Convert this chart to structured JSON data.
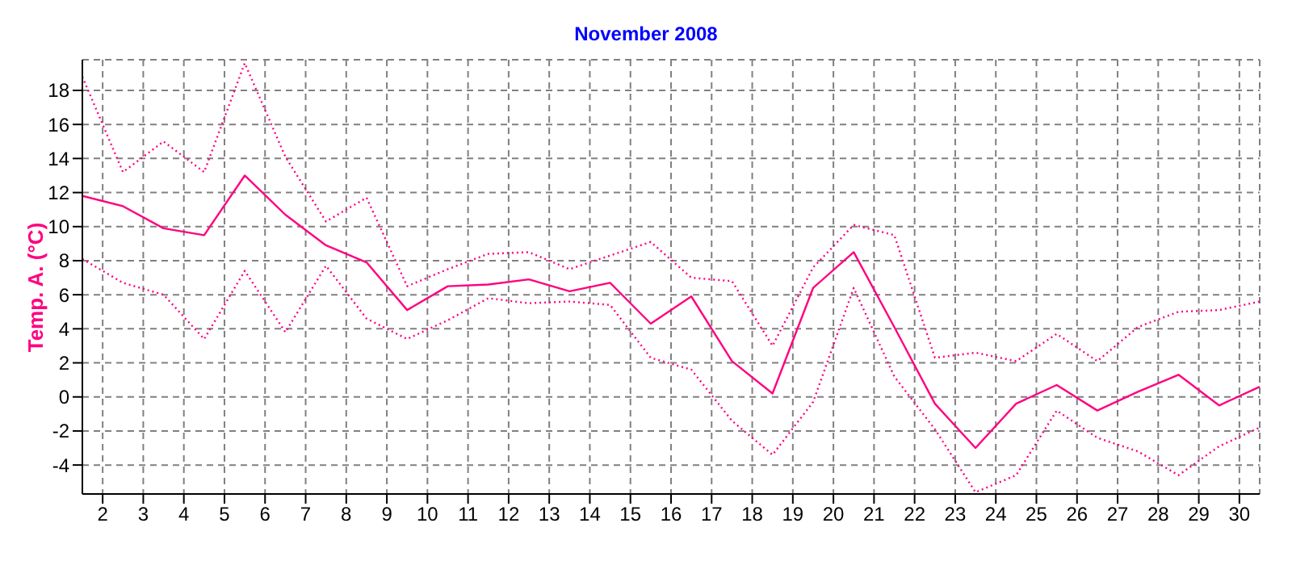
{
  "chart_data": {
    "type": "line",
    "title": "November 2008",
    "ylabel": "Temp. A. (°C)",
    "x": [
      1.5,
      2.5,
      3.5,
      4.5,
      5.5,
      6.5,
      7.5,
      8.5,
      9.5,
      10.5,
      11.5,
      12.5,
      13.5,
      14.5,
      15.5,
      16.5,
      17.5,
      18.5,
      19.5,
      20.5,
      21.5,
      22.5,
      23.5,
      24.5,
      25.5,
      26.5,
      27.5,
      28.5,
      29.5,
      30.5
    ],
    "series": [
      {
        "color": "#ff0080",
        "line_style": "dotted",
        "values": [
          18.8,
          13.2,
          15.0,
          13.2,
          19.6,
          14.1,
          10.3,
          11.7,
          6.5,
          7.5,
          8.4,
          8.5,
          7.5,
          8.3,
          9.1,
          7.0,
          6.8,
          3.0,
          7.6,
          10.1,
          9.5,
          2.3,
          2.6,
          2.1,
          3.7,
          2.1,
          4.1,
          5.0,
          5.1,
          5.6
        ]
      },
      {
        "color": "#ff0080",
        "line_style": "solid",
        "values": [
          11.8,
          11.2,
          9.9,
          9.5,
          13.0,
          10.7,
          8.9,
          7.9,
          5.1,
          6.5,
          6.6,
          6.9,
          6.2,
          6.7,
          4.3,
          5.9,
          2.1,
          0.2,
          6.4,
          8.5,
          4.1,
          -0.4,
          -3.0,
          -0.4,
          0.7,
          -0.8,
          0.3,
          1.3,
          -0.5,
          0.6
        ]
      },
      {
        "color": "#ff0080",
        "line_style": "dotted",
        "values": [
          8.1,
          6.7,
          6.0,
          3.4,
          7.4,
          3.8,
          7.7,
          4.6,
          3.4,
          4.5,
          5.8,
          5.5,
          5.6,
          5.4,
          2.3,
          1.6,
          -1.4,
          -3.4,
          -0.3,
          6.4,
          1.2,
          -1.9,
          -5.6,
          -4.6,
          -0.8,
          -2.4,
          -3.2,
          -4.6,
          -2.9,
          -1.8
        ]
      }
    ],
    "xlim": [
      1.5,
      30.5
    ],
    "xticks": [
      2,
      3,
      4,
      5,
      6,
      7,
      8,
      9,
      10,
      11,
      12,
      13,
      14,
      15,
      16,
      17,
      18,
      19,
      20,
      21,
      22,
      23,
      24,
      25,
      26,
      27,
      28,
      29,
      30
    ],
    "ylim": [
      -5.7,
      19.8
    ],
    "yticks": [
      -4,
      -2,
      0,
      2,
      4,
      6,
      8,
      10,
      12,
      14,
      16,
      18
    ],
    "grid": true,
    "marker": "none"
  }
}
